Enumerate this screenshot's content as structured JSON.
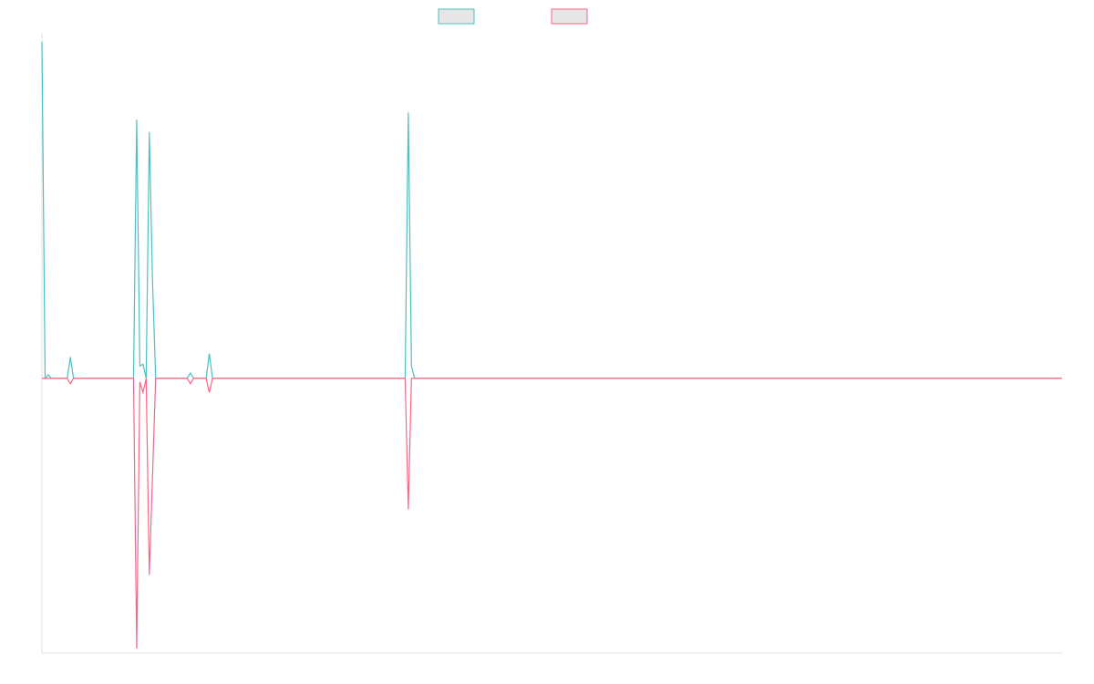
{
  "chart_data": {
    "type": "line",
    "title": "",
    "xlabel": "",
    "ylabel": "",
    "legend_placement": "top-center",
    "grid": false,
    "ylim": [
      -310,
      390
    ],
    "series": [
      {
        "name": "",
        "color": "#4bc0c0",
        "values": [
          {
            "x": 0,
            "y": 380
          },
          {
            "x": 1,
            "y": 0
          },
          {
            "x": 2,
            "y": 4
          },
          {
            "x": 3,
            "y": 0
          },
          {
            "x": 8,
            "y": 0
          },
          {
            "x": 9,
            "y": 24
          },
          {
            "x": 10,
            "y": 0
          },
          {
            "x": 29,
            "y": 0
          },
          {
            "x": 30,
            "y": 292
          },
          {
            "x": 31,
            "y": 14
          },
          {
            "x": 32,
            "y": 16
          },
          {
            "x": 33,
            "y": 0
          },
          {
            "x": 34,
            "y": 278
          },
          {
            "x": 35,
            "y": 112
          },
          {
            "x": 36,
            "y": 0
          },
          {
            "x": 46,
            "y": 0
          },
          {
            "x": 47,
            "y": 6
          },
          {
            "x": 48,
            "y": 0
          },
          {
            "x": 52,
            "y": 0
          },
          {
            "x": 53,
            "y": 28
          },
          {
            "x": 54,
            "y": 0
          },
          {
            "x": 115,
            "y": 0
          },
          {
            "x": 116,
            "y": 300
          },
          {
            "x": 117,
            "y": 14
          },
          {
            "x": 118,
            "y": 0
          },
          {
            "x": 323,
            "y": 0
          }
        ]
      },
      {
        "name": "",
        "color": "#ff6384",
        "values": [
          {
            "x": 0,
            "y": 0
          },
          {
            "x": 8,
            "y": 0
          },
          {
            "x": 9,
            "y": -6
          },
          {
            "x": 10,
            "y": 0
          },
          {
            "x": 29,
            "y": 0
          },
          {
            "x": 30,
            "y": -305
          },
          {
            "x": 31,
            "y": -4
          },
          {
            "x": 32,
            "y": -16
          },
          {
            "x": 33,
            "y": 0
          },
          {
            "x": 34,
            "y": -222
          },
          {
            "x": 35,
            "y": -112
          },
          {
            "x": 36,
            "y": 0
          },
          {
            "x": 46,
            "y": 0
          },
          {
            "x": 47,
            "y": -6
          },
          {
            "x": 48,
            "y": 0
          },
          {
            "x": 52,
            "y": 0
          },
          {
            "x": 53,
            "y": -16
          },
          {
            "x": 54,
            "y": 0
          },
          {
            "x": 115,
            "y": 0
          },
          {
            "x": 116,
            "y": -148
          },
          {
            "x": 117,
            "y": 0
          },
          {
            "x": 323,
            "y": 0
          }
        ]
      }
    ],
    "xlim": [
      0,
      323
    ],
    "legend_fill": "#e6e6e6",
    "axis_color": "#e0e0e0"
  }
}
